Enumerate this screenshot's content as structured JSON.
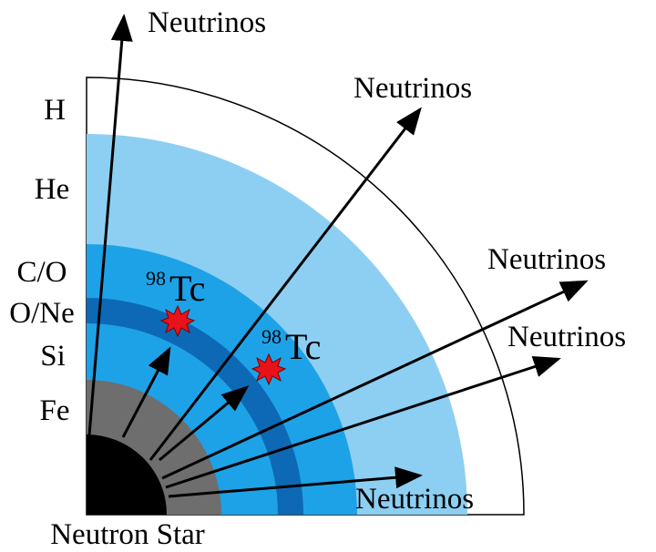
{
  "layers": [
    {
      "label": "H"
    },
    {
      "label": "He"
    },
    {
      "label": "C/O"
    },
    {
      "label": "O/Ne"
    },
    {
      "label": "Si"
    },
    {
      "label": "Fe"
    }
  ],
  "core_label": "Neutron Star",
  "neutrino_labels": [
    "Neutrinos",
    "Neutrinos",
    "Neutrinos",
    "Neutrinos",
    "Neutrinos"
  ],
  "isotopes": [
    {
      "mass": "98",
      "symbol": "Tc"
    },
    {
      "mass": "98",
      "symbol": "Tc"
    }
  ]
}
